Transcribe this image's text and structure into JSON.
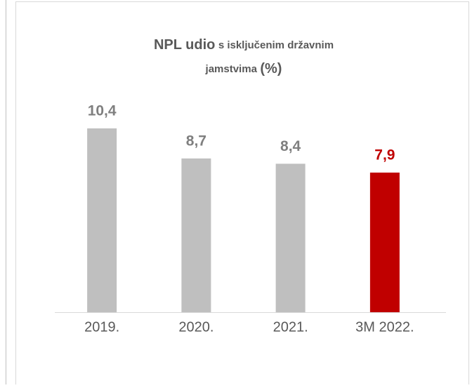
{
  "chart_data": {
    "type": "bar",
    "title": [
      "NPL udio",
      "s isključenim državnim",
      "jamstvima",
      "(%)"
    ],
    "categories": [
      "2019.",
      "2020.",
      "2021.",
      "3M 2022."
    ],
    "values": [
      10.4,
      8.7,
      8.4,
      7.9
    ],
    "value_labels": [
      "10,4",
      "8,7",
      "8,4",
      "7,9"
    ],
    "colors": [
      "#bfbfbf",
      "#bfbfbf",
      "#bfbfbf",
      "#c00000"
    ],
    "label_colors": [
      "#7f7f7f",
      "#7f7f7f",
      "#7f7f7f",
      "#c00000"
    ]
  }
}
